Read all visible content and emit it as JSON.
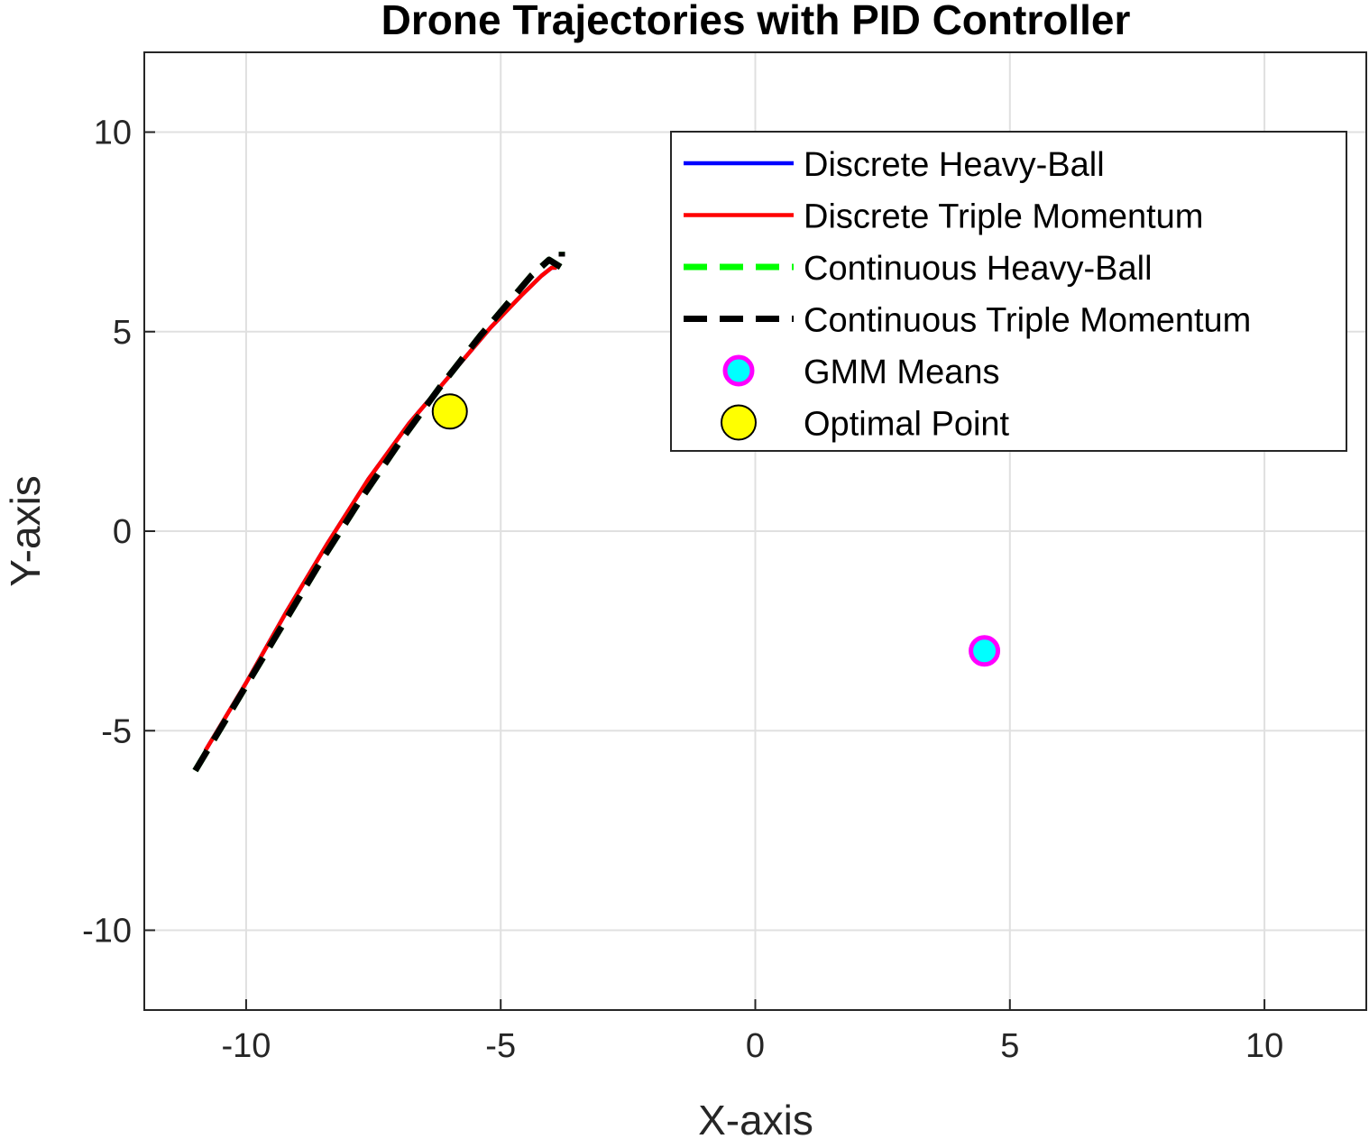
{
  "chart_data": {
    "type": "line",
    "title": "Drone Trajectories with PID Controller",
    "xlabel": "X-axis",
    "ylabel": "Y-axis",
    "xlim": [
      -12,
      12
    ],
    "ylim": [
      -12,
      12
    ],
    "xticks": [
      -10,
      -5,
      0,
      5,
      10
    ],
    "yticks": [
      -10,
      -5,
      0,
      5,
      10
    ],
    "xtick_labels": [
      "-10",
      "-5",
      "0",
      "5",
      "10"
    ],
    "ytick_labels": [
      "-10",
      "-5",
      "0",
      "5",
      "10"
    ],
    "grid": true,
    "legend_position": "top-right",
    "series": [
      {
        "name": "Discrete Heavy-Ball",
        "color": "#0000ff",
        "style": "solid",
        "x": [
          -10.8,
          -10.0,
          -9.2,
          -8.4,
          -7.6,
          -6.8,
          -6.0,
          -5.2,
          -4.6,
          -4.2,
          -4.0,
          -3.9
        ],
        "y": [
          -5.5,
          -3.8,
          -2.0,
          -0.3,
          1.3,
          2.7,
          3.9,
          5.1,
          5.9,
          6.4,
          6.6,
          6.6
        ]
      },
      {
        "name": "Discrete Triple Momentum",
        "color": "#ff0000",
        "style": "solid",
        "x": [
          -10.8,
          -10.0,
          -9.2,
          -8.4,
          -7.6,
          -6.8,
          -6.0,
          -5.2,
          -4.6,
          -4.2,
          -4.0,
          -3.9
        ],
        "y": [
          -5.5,
          -3.8,
          -2.0,
          -0.3,
          1.3,
          2.7,
          3.9,
          5.1,
          5.9,
          6.4,
          6.6,
          6.6
        ]
      },
      {
        "name": "Continuous Heavy-Ball",
        "color": "#00ff00",
        "style": "dashed",
        "x": [
          -11.0,
          -10.2,
          -9.4,
          -8.6,
          -7.8,
          -7.0,
          -6.2,
          -5.4,
          -4.8,
          -4.4,
          -4.05,
          -3.8,
          -3.8
        ],
        "y": [
          -6.0,
          -4.3,
          -2.6,
          -0.9,
          0.7,
          2.2,
          3.6,
          4.9,
          5.8,
          6.4,
          6.8,
          6.6,
          7.0
        ]
      },
      {
        "name": "Continuous Triple Momentum",
        "color": "#000000",
        "style": "dashed",
        "x": [
          -11.0,
          -10.2,
          -9.4,
          -8.6,
          -7.8,
          -7.0,
          -6.2,
          -5.4,
          -4.8,
          -4.4,
          -4.05,
          -3.8,
          -3.8
        ],
        "y": [
          -6.0,
          -4.3,
          -2.6,
          -0.9,
          0.7,
          2.2,
          3.6,
          4.9,
          5.8,
          6.4,
          6.8,
          6.6,
          7.0
        ]
      },
      {
        "name": "GMM Means",
        "type": "scatter",
        "marker_fill": "#00ffff",
        "marker_edge": "#ff00ff",
        "x": [
          4.5
        ],
        "y": [
          -3.0
        ]
      },
      {
        "name": "Optimal Point",
        "type": "scatter",
        "marker_fill": "#ffff00",
        "marker_edge": "#000000",
        "x": [
          -6.0
        ],
        "y": [
          3.0
        ]
      }
    ]
  }
}
